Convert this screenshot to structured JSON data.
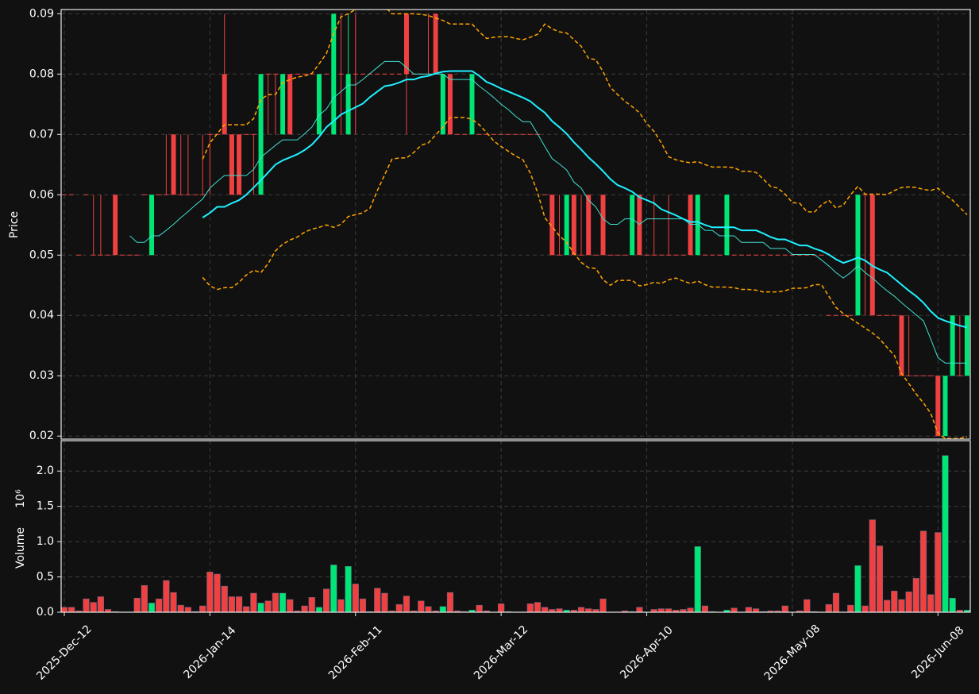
{
  "chart_data": {
    "type": "candlestick",
    "categories": [
      "2025-Dec-12",
      null,
      null,
      null,
      null,
      null,
      null,
      null,
      null,
      null,
      null,
      null,
      null,
      null,
      null,
      null,
      null,
      null,
      null,
      null,
      "2026-Jan-14",
      null,
      null,
      null,
      null,
      null,
      null,
      null,
      null,
      null,
      null,
      null,
      null,
      null,
      null,
      null,
      null,
      null,
      null,
      null,
      "2026-Feb-11",
      null,
      null,
      null,
      null,
      null,
      null,
      null,
      null,
      null,
      null,
      null,
      null,
      null,
      null,
      null,
      null,
      null,
      null,
      null,
      "2026-Mar-12",
      null,
      null,
      null,
      null,
      null,
      null,
      null,
      null,
      null,
      null,
      null,
      null,
      null,
      null,
      null,
      null,
      null,
      null,
      null,
      "2026-Apr-10",
      null,
      null,
      null,
      null,
      null,
      null,
      null,
      null,
      null,
      null,
      null,
      null,
      null,
      null,
      null,
      null,
      null,
      null,
      null,
      "2026-May-08",
      null,
      null,
      null,
      null,
      null,
      null,
      null,
      null,
      null,
      null,
      null,
      null,
      null,
      null,
      null,
      null,
      null,
      null,
      null,
      "2026-Jun-08",
      null,
      null,
      null,
      null
    ],
    "open": [
      0.06,
      0.06,
      0.05,
      0.06,
      0.05,
      0.05,
      0.05,
      0.06,
      0.05,
      0.05,
      0.05,
      0.06,
      0.05,
      0.06,
      0.06,
      0.07,
      0.06,
      0.06,
      0.06,
      0.06,
      0.07,
      0.07,
      0.08,
      0.07,
      0.07,
      0.07,
      0.07,
      0.06,
      0.08,
      0.08,
      0.07,
      0.08,
      0.08,
      0.08,
      0.08,
      0.07,
      0.08,
      0.07,
      0.08,
      0.07,
      0.08,
      0.08,
      0.08,
      0.08,
      0.08,
      0.08,
      0.08,
      0.09,
      0.08,
      0.08,
      0.08,
      0.09,
      0.07,
      0.08,
      0.07,
      0.07,
      0.07,
      0.07,
      0.07,
      0.07,
      0.07,
      0.07,
      0.07,
      0.07,
      0.07,
      0.07,
      0.06,
      0.06,
      0.05,
      0.05,
      0.06,
      0.05,
      0.06,
      0.05,
      0.06,
      0.05,
      0.05,
      0.05,
      0.05,
      0.06,
      0.05,
      0.05,
      0.05,
      0.05,
      0.05,
      0.05,
      0.06,
      0.05,
      0.05,
      0.05,
      0.05,
      0.05,
      0.05,
      0.05,
      0.05,
      0.05,
      0.05,
      0.05,
      0.05,
      0.05,
      0.05,
      0.05,
      0.05,
      0.05,
      0.05,
      0.04,
      0.04,
      0.04,
      0.04,
      0.04,
      0.06,
      0.06,
      0.04,
      0.04,
      0.04,
      0.04,
      0.03,
      0.03,
      0.03,
      0.03,
      0.03,
      0.02,
      0.03,
      0.03,
      0.03
    ],
    "high": [
      0.06,
      0.06,
      0.05,
      0.06,
      0.06,
      0.06,
      0.05,
      0.06,
      0.05,
      0.05,
      0.05,
      0.06,
      0.06,
      0.06,
      0.07,
      0.07,
      0.07,
      0.07,
      0.06,
      0.07,
      0.07,
      0.07,
      0.09,
      0.07,
      0.07,
      0.07,
      0.07,
      0.08,
      0.08,
      0.08,
      0.08,
      0.08,
      0.08,
      0.08,
      0.08,
      0.08,
      0.08,
      0.09,
      0.09,
      0.09,
      0.09,
      0.08,
      0.08,
      0.08,
      0.08,
      0.08,
      0.08,
      0.09,
      0.08,
      0.08,
      0.09,
      0.09,
      0.08,
      0.08,
      0.07,
      0.07,
      0.08,
      0.07,
      0.07,
      0.07,
      0.07,
      0.07,
      0.07,
      0.07,
      0.07,
      0.07,
      0.06,
      0.06,
      0.06,
      0.06,
      0.06,
      0.06,
      0.06,
      0.05,
      0.06,
      0.05,
      0.05,
      0.05,
      0.06,
      0.06,
      0.05,
      0.06,
      0.05,
      0.06,
      0.05,
      0.05,
      0.06,
      0.06,
      0.05,
      0.05,
      0.05,
      0.06,
      0.05,
      0.05,
      0.05,
      0.05,
      0.05,
      0.05,
      0.05,
      0.05,
      0.05,
      0.05,
      0.05,
      0.05,
      0.05,
      0.04,
      0.04,
      0.04,
      0.04,
      0.06,
      0.06,
      0.06,
      0.04,
      0.04,
      0.04,
      0.04,
      0.04,
      0.03,
      0.03,
      0.03,
      0.03,
      0.03,
      0.04,
      0.04,
      0.04
    ],
    "low": [
      0.06,
      0.06,
      0.05,
      0.06,
      0.05,
      0.05,
      0.05,
      0.05,
      0.05,
      0.05,
      0.05,
      0.06,
      0.05,
      0.06,
      0.06,
      0.06,
      0.06,
      0.06,
      0.06,
      0.06,
      0.06,
      0.07,
      0.07,
      0.06,
      0.06,
      0.07,
      0.06,
      0.06,
      0.07,
      0.07,
      0.07,
      0.07,
      0.08,
      0.08,
      0.08,
      0.07,
      0.08,
      0.07,
      0.07,
      0.07,
      0.07,
      0.08,
      0.08,
      0.08,
      0.08,
      0.08,
      0.08,
      0.07,
      0.08,
      0.08,
      0.08,
      0.08,
      0.07,
      0.07,
      0.07,
      0.07,
      0.07,
      0.07,
      0.07,
      0.07,
      0.07,
      0.07,
      0.07,
      0.07,
      0.07,
      0.07,
      0.06,
      0.05,
      0.05,
      0.05,
      0.05,
      0.05,
      0.05,
      0.05,
      0.05,
      0.05,
      0.05,
      0.05,
      0.05,
      0.05,
      0.05,
      0.05,
      0.05,
      0.05,
      0.05,
      0.05,
      0.05,
      0.05,
      0.05,
      0.05,
      0.05,
      0.05,
      0.05,
      0.05,
      0.05,
      0.05,
      0.05,
      0.05,
      0.05,
      0.05,
      0.05,
      0.05,
      0.05,
      0.05,
      0.05,
      0.04,
      0.04,
      0.04,
      0.04,
      0.04,
      0.04,
      0.04,
      0.04,
      0.04,
      0.04,
      0.03,
      0.03,
      0.03,
      0.03,
      0.03,
      0.02,
      0.02,
      0.03,
      0.03,
      0.03
    ],
    "close": [
      0.06,
      0.06,
      0.05,
      0.06,
      0.05,
      0.05,
      0.05,
      0.05,
      0.05,
      0.05,
      0.05,
      0.06,
      0.06,
      0.06,
      0.06,
      0.06,
      0.06,
      0.06,
      0.06,
      0.06,
      0.07,
      0.07,
      0.07,
      0.06,
      0.06,
      0.07,
      0.07,
      0.08,
      0.08,
      0.08,
      0.08,
      0.07,
      0.08,
      0.08,
      0.08,
      0.08,
      0.08,
      0.09,
      0.08,
      0.08,
      0.08,
      0.08,
      0.08,
      0.08,
      0.08,
      0.08,
      0.08,
      0.08,
      0.08,
      0.08,
      0.08,
      0.08,
      0.08,
      0.07,
      0.07,
      0.07,
      0.08,
      0.07,
      0.07,
      0.07,
      0.07,
      0.07,
      0.07,
      0.07,
      0.07,
      0.07,
      0.06,
      0.05,
      0.05,
      0.06,
      0.05,
      0.05,
      0.05,
      0.05,
      0.05,
      0.05,
      0.05,
      0.05,
      0.06,
      0.05,
      0.05,
      0.05,
      0.05,
      0.05,
      0.05,
      0.05,
      0.05,
      0.06,
      0.05,
      0.05,
      0.05,
      0.06,
      0.05,
      0.05,
      0.05,
      0.05,
      0.05,
      0.05,
      0.05,
      0.05,
      0.05,
      0.05,
      0.05,
      0.05,
      0.05,
      0.04,
      0.04,
      0.04,
      0.04,
      0.06,
      0.06,
      0.04,
      0.04,
      0.04,
      0.04,
      0.03,
      0.03,
      0.03,
      0.03,
      0.03,
      0.02,
      0.03,
      0.04,
      0.03,
      0.04
    ],
    "up_color": "#00e676",
    "down_color": "#ef4141",
    "ylabel": "Price",
    "ylim": [
      0.0195,
      0.0907
    ],
    "yticks": [
      0.02,
      0.03,
      0.04,
      0.05,
      0.06,
      0.07,
      0.08,
      0.09
    ],
    "grid": true,
    "lines": [
      {
        "color": "#ffa500",
        "width": 1.5,
        "style": "dashed",
        "values": [
          null,
          null,
          null,
          null,
          null,
          null,
          null,
          null,
          null,
          null,
          null,
          null,
          null,
          null,
          null,
          null,
          null,
          null,
          null,
          0.0659,
          0.0686,
          0.0701,
          0.0716,
          0.0716,
          0.0716,
          0.0716,
          0.0726,
          0.0758,
          0.0766,
          0.0766,
          0.0786,
          0.0791,
          0.0795,
          0.0797,
          0.0801,
          0.0817,
          0.0834,
          0.0867,
          0.0895,
          0.09,
          0.0907,
          0.0909,
          0.0912,
          0.0912,
          0.0912,
          0.09,
          0.09,
          0.09,
          0.09,
          0.0899,
          0.0897,
          0.0893,
          0.0889,
          0.0883,
          0.0883,
          0.0883,
          0.0883,
          0.087,
          0.0859,
          0.0861,
          0.0862,
          0.0862,
          0.0859,
          0.0857,
          0.0861,
          0.0866,
          0.0883,
          0.0875,
          0.087,
          0.0868,
          0.0857,
          0.0846,
          0.0826,
          0.0824,
          0.0804,
          0.0778,
          0.0766,
          0.0755,
          0.0746,
          0.0736,
          0.0718,
          0.0705,
          0.0686,
          0.0663,
          0.0658,
          0.0655,
          0.0653,
          0.0655,
          0.065,
          0.0646,
          0.0646,
          0.0646,
          0.0645,
          0.0639,
          0.0639,
          0.0637,
          0.0626,
          0.0614,
          0.0611,
          0.0601,
          0.0587,
          0.0586,
          0.0572,
          0.0571,
          0.0583,
          0.0591,
          0.0578,
          0.0583,
          0.06,
          0.0614,
          0.0601,
          0.0601,
          0.0601,
          0.06,
          0.0607,
          0.0612,
          0.0613,
          0.0612,
          0.0609,
          0.0607,
          0.0611,
          0.06,
          0.0591,
          0.0579,
          0.0567
        ]
      },
      {
        "color": "#ffa500",
        "width": 1.5,
        "style": "dashed",
        "values": [
          null,
          null,
          null,
          null,
          null,
          null,
          null,
          null,
          null,
          null,
          null,
          null,
          null,
          null,
          null,
          null,
          null,
          null,
          null,
          0.0463,
          0.0449,
          0.0443,
          0.0446,
          0.0446,
          0.0455,
          0.0467,
          0.0475,
          0.0471,
          0.0486,
          0.0507,
          0.0518,
          0.0525,
          0.053,
          0.0538,
          0.0543,
          0.0546,
          0.055,
          0.0546,
          0.0551,
          0.0564,
          0.0567,
          0.057,
          0.0578,
          0.0607,
          0.0633,
          0.0659,
          0.0661,
          0.0661,
          0.067,
          0.0682,
          0.0686,
          0.0699,
          0.0712,
          0.0728,
          0.0728,
          0.0728,
          0.0725,
          0.0716,
          0.0703,
          0.0689,
          0.068,
          0.0672,
          0.0664,
          0.0658,
          0.0636,
          0.0604,
          0.0562,
          0.0547,
          0.0532,
          0.0521,
          0.0503,
          0.0488,
          0.0479,
          0.0478,
          0.0459,
          0.045,
          0.0458,
          0.0458,
          0.0458,
          0.0449,
          0.0451,
          0.0455,
          0.0453,
          0.0459,
          0.0462,
          0.0457,
          0.0453,
          0.0457,
          0.0451,
          0.0447,
          0.0447,
          0.0447,
          0.0446,
          0.0443,
          0.0443,
          0.0442,
          0.0439,
          0.0439,
          0.0439,
          0.0441,
          0.0445,
          0.0445,
          0.0446,
          0.0451,
          0.0451,
          0.0432,
          0.0413,
          0.0403,
          0.0395,
          0.0387,
          0.0379,
          0.0371,
          0.0361,
          0.0347,
          0.0334,
          0.0304,
          0.0287,
          0.027,
          0.0255,
          0.0238,
          0.0205,
          0.0196,
          0.0196,
          0.0196,
          0.0199
        ]
      },
      {
        "color": "#40e0d0",
        "width": 1,
        "style": "solid",
        "values": [
          null,
          null,
          null,
          null,
          null,
          null,
          null,
          null,
          null,
          0.0532,
          0.0521,
          0.0521,
          0.0532,
          0.0532,
          0.0541,
          0.0551,
          0.0562,
          0.0572,
          0.0583,
          0.0593,
          0.0611,
          0.0622,
          0.0632,
          0.0632,
          0.0632,
          0.0632,
          0.0642,
          0.0662,
          0.0672,
          0.0682,
          0.0691,
          0.0691,
          0.0691,
          0.0701,
          0.0712,
          0.0732,
          0.0742,
          0.0761,
          0.0771,
          0.0782,
          0.0782,
          0.0791,
          0.0801,
          0.0811,
          0.0821,
          0.0821,
          0.0821,
          0.0811,
          0.08,
          0.08,
          0.08,
          0.08,
          0.08,
          0.0791,
          0.0791,
          0.0791,
          0.0791,
          0.078,
          0.0771,
          0.0761,
          0.075,
          0.0741,
          0.073,
          0.0721,
          0.0721,
          0.0701,
          0.068,
          0.066,
          0.0651,
          0.0641,
          0.0621,
          0.0611,
          0.0591,
          0.058,
          0.056,
          0.0551,
          0.0551,
          0.056,
          0.056,
          0.0551,
          0.056,
          0.056,
          0.056,
          0.056,
          0.056,
          0.056,
          0.0551,
          0.0551,
          0.0541,
          0.0541,
          0.0532,
          0.0532,
          0.0532,
          0.0521,
          0.0521,
          0.0521,
          0.0521,
          0.0511,
          0.0511,
          0.0511,
          0.0501,
          0.0501,
          0.0501,
          0.0501,
          0.0492,
          0.0482,
          0.0471,
          0.0462,
          0.0471,
          0.0482,
          0.0471,
          0.0462,
          0.0451,
          0.0441,
          0.0432,
          0.0421,
          0.0411,
          0.0401,
          0.0391,
          0.0361,
          0.033,
          0.0321,
          0.0321,
          0.0321,
          0.0321
        ]
      },
      {
        "color": "#1ef0ff",
        "width": 2,
        "style": "solid",
        "values": [
          null,
          null,
          null,
          null,
          null,
          null,
          null,
          null,
          null,
          null,
          null,
          null,
          null,
          null,
          null,
          null,
          null,
          null,
          null,
          0.0562,
          0.057,
          0.058,
          0.058,
          0.0586,
          0.0591,
          0.06,
          0.0612,
          0.0624,
          0.0637,
          0.065,
          0.0657,
          0.0662,
          0.0667,
          0.0674,
          0.0683,
          0.0696,
          0.0712,
          0.0722,
          0.0733,
          0.0739,
          0.0745,
          0.0751,
          0.0762,
          0.0771,
          0.078,
          0.0782,
          0.0786,
          0.0791,
          0.0791,
          0.0795,
          0.0797,
          0.0801,
          0.0804,
          0.0805,
          0.0805,
          0.0805,
          0.0805,
          0.0797,
          0.0787,
          0.0782,
          0.0776,
          0.0771,
          0.0766,
          0.0761,
          0.0755,
          0.0745,
          0.0736,
          0.0722,
          0.0712,
          0.0701,
          0.0687,
          0.0675,
          0.0662,
          0.0651,
          0.0639,
          0.0626,
          0.0616,
          0.0611,
          0.0605,
          0.0596,
          0.0591,
          0.0586,
          0.0576,
          0.0571,
          0.0566,
          0.056,
          0.0555,
          0.0555,
          0.055,
          0.0546,
          0.0546,
          0.0546,
          0.0546,
          0.0541,
          0.0541,
          0.0541,
          0.0536,
          0.053,
          0.0526,
          0.0526,
          0.0521,
          0.0516,
          0.0516,
          0.0511,
          0.0507,
          0.0501,
          0.0493,
          0.0487,
          0.0491,
          0.0496,
          0.0491,
          0.0482,
          0.0476,
          0.0471,
          0.0461,
          0.0451,
          0.0441,
          0.0432,
          0.0421,
          0.0407,
          0.0396,
          0.0391,
          0.0387,
          0.0383,
          0.038
        ]
      }
    ],
    "volume": {
      "ylabel": "Volume",
      "offset_label": "10⁶",
      "ylim": [
        0,
        2.43
      ],
      "yticks": [
        {
          "value": 0,
          "label": "0.0"
        },
        0.5,
        {
          "value": 1,
          "label": "1.0"
        },
        1.5,
        {
          "value": 2,
          "label": "2.0"
        }
      ],
      "values": [
        0.07,
        0.07,
        0.02,
        0.19,
        0.14,
        0.22,
        0.04,
        0.01,
        0,
        0,
        0.2,
        0.38,
        0.13,
        0.19,
        0.45,
        0.28,
        0.1,
        0.07,
        0.01,
        0.09,
        0.57,
        0.54,
        0.37,
        0.22,
        0.22,
        0.08,
        0.27,
        0.13,
        0.16,
        0.27,
        0.27,
        0.18,
        0.02,
        0.09,
        0.21,
        0.07,
        0.33,
        0.67,
        0.18,
        0.65,
        0.4,
        0.19,
        0.01,
        0.34,
        0.27,
        0.02,
        0.11,
        0.23,
        0.02,
        0.16,
        0.08,
        0.02,
        0.08,
        0.28,
        0.02,
        0.01,
        0.03,
        0.1,
        0.02,
        0,
        0.12,
        0.01,
        0,
        0,
        0.12,
        0.14,
        0.07,
        0.04,
        0.05,
        0.03,
        0.03,
        0.07,
        0.05,
        0.04,
        0.19,
        0,
        0,
        0.02,
        0.01,
        0.07,
        0,
        0.04,
        0.05,
        0.05,
        0.03,
        0.04,
        0.06,
        0.93,
        0.09,
        0.01,
        0,
        0.03,
        0.06,
        0,
        0.07,
        0.05,
        0.01,
        0.02,
        0.02,
        0.09,
        0,
        0.02,
        0.18,
        0.01,
        0,
        0.11,
        0.27,
        0,
        0.1,
        0.66,
        0.09,
        1.31,
        0.94,
        0.17,
        0.3,
        0.18,
        0.29,
        0.48,
        1.15,
        0.25,
        1.13,
        2.22,
        0.2,
        0.03,
        0.03
      ]
    }
  }
}
